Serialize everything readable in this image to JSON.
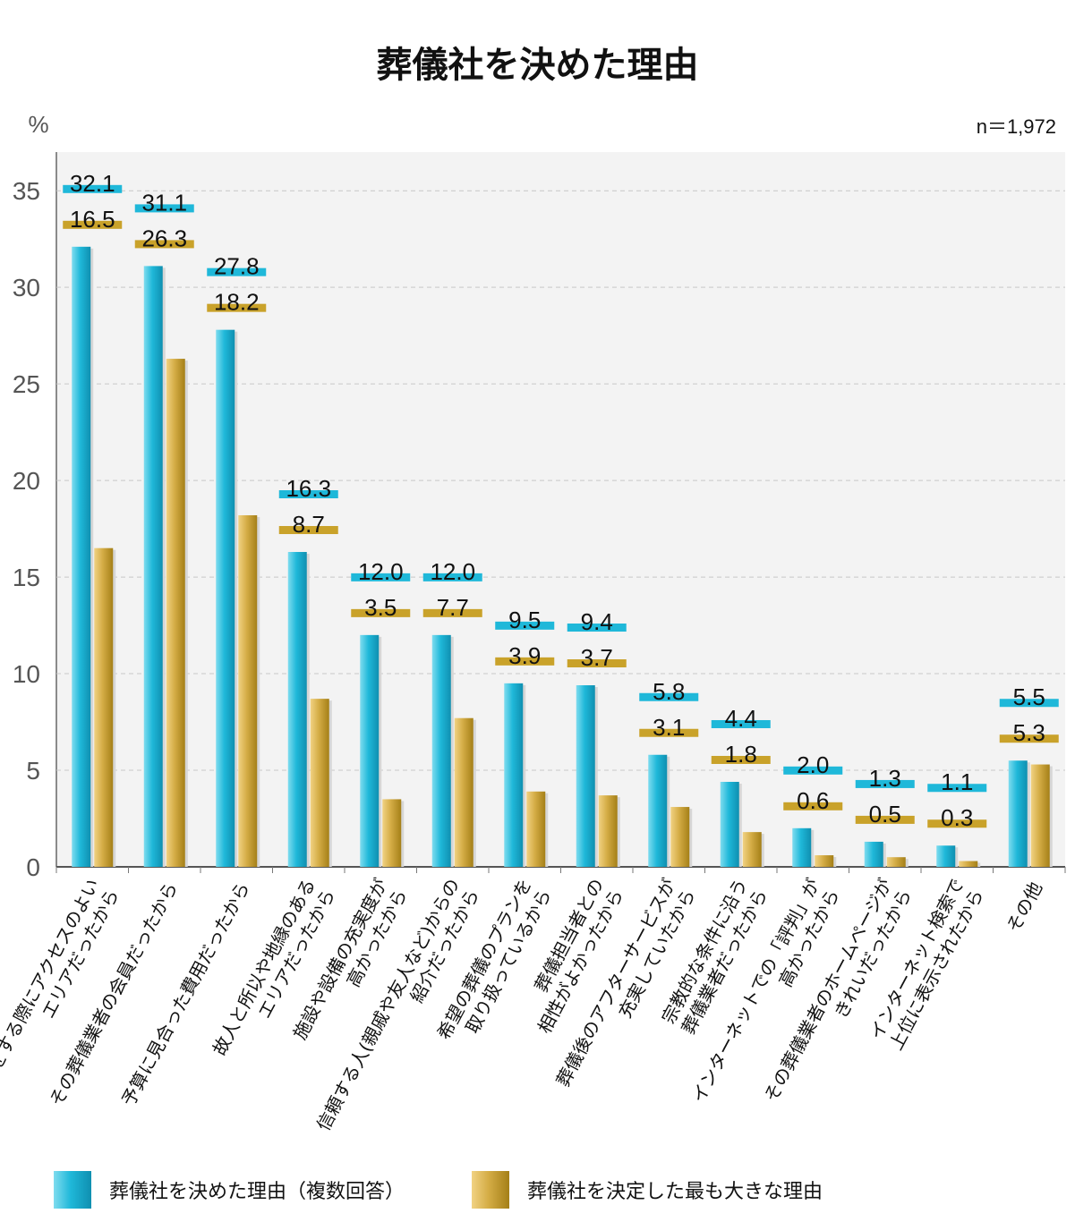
{
  "chart_data": {
    "type": "bar",
    "title": "葬儀社を決めた理由",
    "ylabel": "%",
    "sample_note": "n＝1,972",
    "ylim": [
      0,
      37
    ],
    "yticks": [
      0,
      5,
      10,
      15,
      20,
      25,
      30,
      35
    ],
    "grid": true,
    "legend_position": "bottom",
    "categories": [
      [
        "葬儀をする際にアクセスのよい",
        "エリアだったから"
      ],
      [
        "その葬儀業者の会員だったから"
      ],
      [
        "予算に見合った費用だったから"
      ],
      [
        "故人と所以や地縁のある",
        "エリアだったから"
      ],
      [
        "施設や設備の充実度が",
        "高かったから"
      ],
      [
        "信頼する人(親戚や友人など)からの",
        "紹介だったから"
      ],
      [
        "希望の葬儀のプランを",
        "取り扱っているから"
      ],
      [
        "葬儀担当者との",
        "相性がよかったから"
      ],
      [
        "葬儀後のアフターサービスが",
        "充実していたから"
      ],
      [
        "宗教的な条件に沿う",
        "葬儀業者だったから"
      ],
      [
        "インターネットでの「評判」が",
        "高かったから"
      ],
      [
        "その葬儀業者のホームページが",
        "きれいだったから"
      ],
      [
        "インターネット検索で",
        "上位に表示されたから"
      ],
      [
        "その他"
      ]
    ],
    "series": [
      {
        "name": "葬儀社を決めた理由（複数回答）",
        "color": "#1fb8d9",
        "values": [
          32.1,
          31.1,
          27.8,
          16.3,
          12.0,
          12.0,
          9.5,
          9.4,
          5.8,
          4.4,
          2.0,
          1.3,
          1.1,
          5.5
        ],
        "labels": [
          "32.1",
          "31.1",
          "27.8",
          "16.3",
          "12.0",
          "12.0",
          "9.5",
          "9.4",
          "5.8",
          "4.4",
          "2.0",
          "1.3",
          "1.1",
          "5.5"
        ]
      },
      {
        "name": "葬儀社を決定した最も大きな理由",
        "color": "#c9a22a",
        "values": [
          16.5,
          26.3,
          18.2,
          8.7,
          3.5,
          7.7,
          3.9,
          3.7,
          3.1,
          1.8,
          0.6,
          0.5,
          0.3,
          5.3
        ],
        "labels": [
          "16.5",
          "26.3",
          "18.2",
          "8.7",
          "3.5",
          "7.7",
          "3.9",
          "3.7",
          "3.1",
          "1.8",
          "0.6",
          "0.5",
          "0.3",
          "5.3"
        ]
      }
    ]
  }
}
